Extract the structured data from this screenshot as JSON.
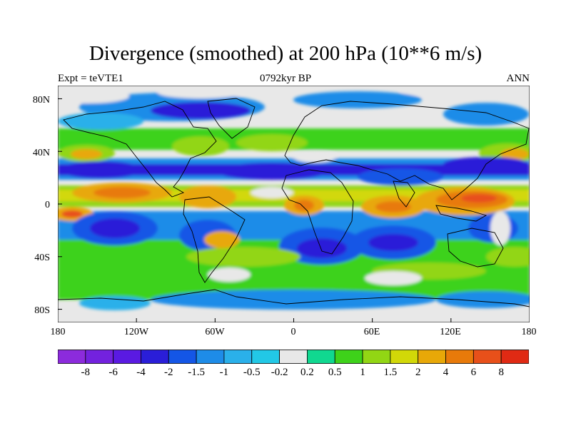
{
  "title": "Divergence (smoothed) at 200 hPa (10**6 m/s)",
  "subtitle_left": "Expt = teVTE1",
  "subtitle_center": "0792kyr BP",
  "subtitle_right": "ANN",
  "chart_data": {
    "type": "heatmap",
    "title": "Divergence (smoothed) at 200 hPa (10**6 m/s)",
    "projection": "cylindrical equidistant",
    "field": "200 hPa divergence (smoothed), annual mean",
    "x_ticks": [
      "180",
      "120W",
      "60W",
      "0",
      "60E",
      "120E",
      "180"
    ],
    "y_ticks": [
      "80N",
      "40N",
      "0",
      "40S",
      "80S"
    ],
    "lon_range": [
      -180,
      180
    ],
    "lat_range": [
      -90,
      90
    ],
    "colorbar": {
      "levels": [
        "-8",
        "-6",
        "-4",
        "-2",
        "-1.5",
        "-1",
        "-0.5",
        "-0.2",
        "0.2",
        "0.5",
        "1",
        "1.5",
        "2",
        "4",
        "6",
        "8"
      ],
      "colors": [
        "#8c2bdc",
        "#7322de",
        "#5a1ae2",
        "#2a1ed8",
        "#1456e6",
        "#1e8ce8",
        "#2ab0ea",
        "#22c8e6",
        "#e8e8e8",
        "#10d890",
        "#3ed21a",
        "#92d614",
        "#d2d808",
        "#e8a808",
        "#e87a0a",
        "#e8501a",
        "#e02a14"
      ]
    }
  }
}
